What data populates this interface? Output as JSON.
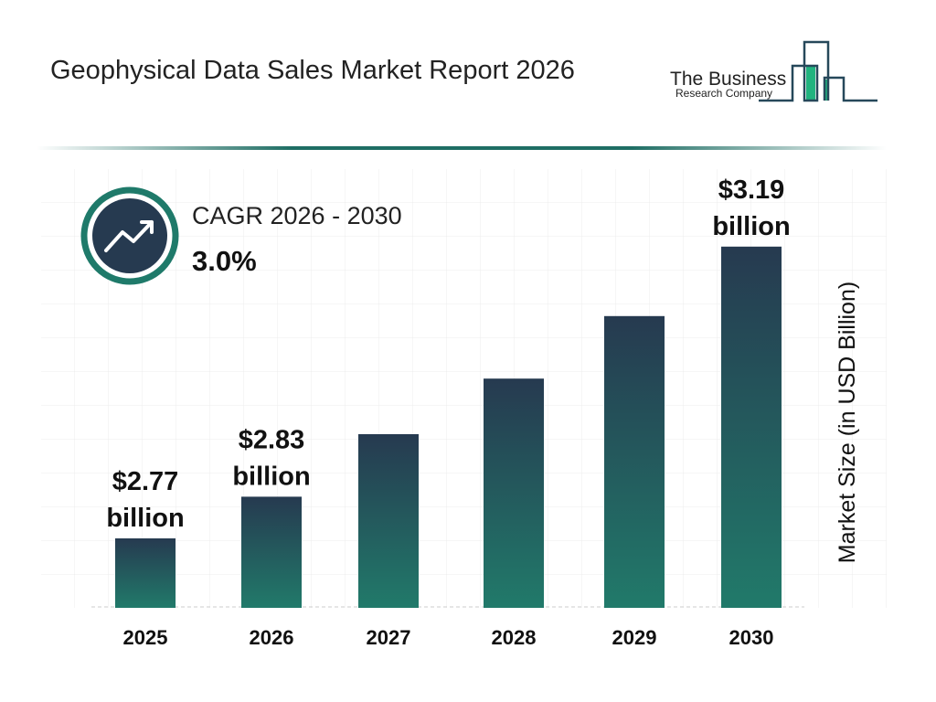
{
  "header": {
    "title": "Geophysical Data Sales Market Report 2026",
    "logo_line1": "The Business",
    "logo_line2": "Research Company"
  },
  "cagr": {
    "label": "CAGR 2026 - 2030",
    "value": "3.0%",
    "icon": "trend-up-icon"
  },
  "chart_data": {
    "type": "bar",
    "categories": [
      "2025",
      "2026",
      "2027",
      "2028",
      "2029",
      "2030"
    ],
    "values": [
      2.77,
      2.83,
      2.92,
      3.0,
      3.09,
      3.19
    ],
    "data_labels": [
      {
        "index": 0,
        "line1": "$2.77",
        "line2": "billion"
      },
      {
        "index": 1,
        "line1": "$2.83",
        "line2": "billion"
      },
      {
        "index": 5,
        "line1": "$3.19",
        "line2": "billion"
      }
    ],
    "ylabel": "Market Size (in USD Billion)",
    "grid": true,
    "colors": {
      "bar_top": "#263a50",
      "bar_bottom": "#217a6a",
      "accent": "#1f6e64"
    }
  }
}
